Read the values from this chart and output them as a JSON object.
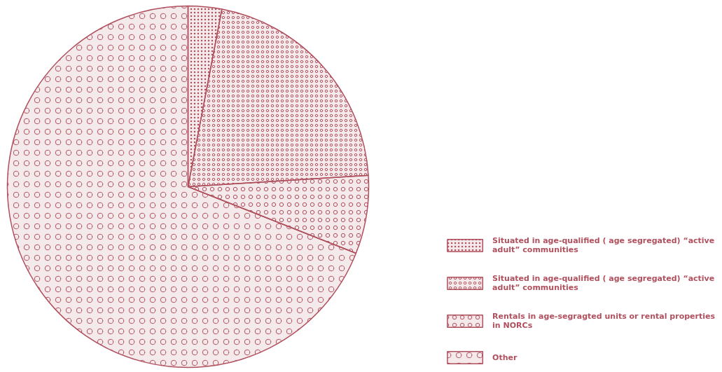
{
  "chart_data": {
    "type": "pie",
    "categories": [
      "Situated in age-qualified ( age segregated) “active adult” communities",
      "Situated in age-qualified ( age segregated) “active adult” communities",
      "Rentals in age-segragted units or rental properties in NORCs",
      "Other"
    ],
    "values": [
      3,
      21,
      7,
      69
    ],
    "colors": [
      "#b0505e",
      "#b0505e",
      "#b0505e",
      "#b0505e"
    ],
    "legend": "right"
  }
}
